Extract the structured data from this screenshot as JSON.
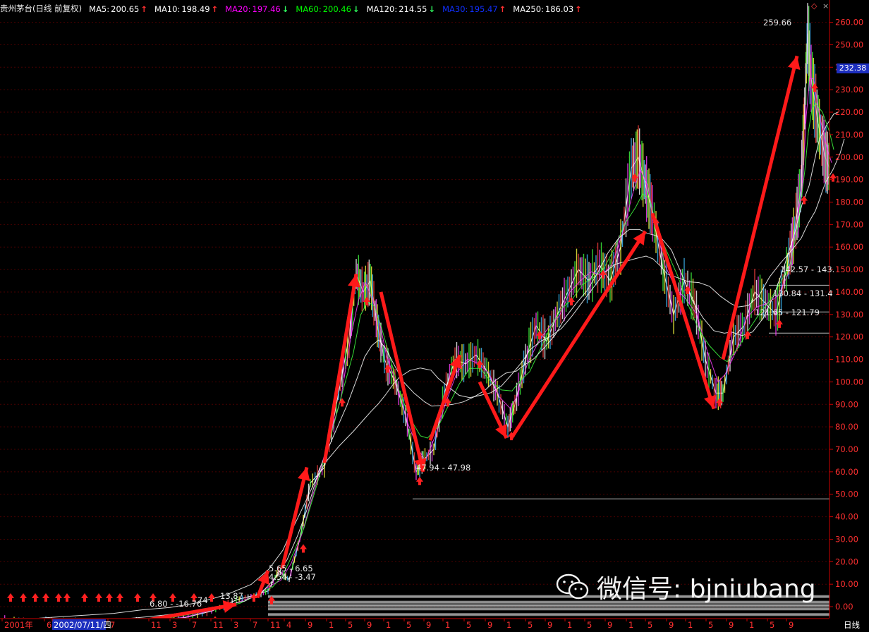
{
  "title": "贵州茅台(日线 前复权)",
  "period_label": "日线",
  "current_price_badge": "232.38",
  "watermark_text": "微信号: bjniubang",
  "icons": {
    "top_right": [
      "diamond-icon",
      "close-icon"
    ],
    "watermark": "wechat-logo-icon"
  },
  "colors": {
    "background": "#000000",
    "up_arrow": "#ff2020",
    "down_arrow": "#20ff40",
    "trend_arrow": "#ff1a1a",
    "grid": "#5a0000",
    "axis": "#cc0000",
    "price_badge": "#1d2fbf"
  },
  "moving_averages": [
    {
      "name": "MA5",
      "value": "200.65",
      "direction": "up",
      "color": "#ffffff"
    },
    {
      "name": "MA10",
      "value": "198.49",
      "direction": "up",
      "color": "#ffffff"
    },
    {
      "name": "MA20",
      "value": "197.46",
      "direction": "down",
      "color": "#ff00ff"
    },
    {
      "name": "MA60",
      "value": "200.46",
      "direction": "down",
      "color": "#00ff00"
    },
    {
      "name": "MA120",
      "value": "214.55",
      "direction": "down",
      "color": "#ffffff"
    },
    {
      "name": "MA30",
      "value": "195.47",
      "direction": "up",
      "color": "#1030ff"
    },
    {
      "name": "MA250",
      "value": "186.03",
      "direction": "up",
      "color": "#ffffff"
    }
  ],
  "chart_data": {
    "type": "line",
    "ylim": [
      -5,
      263
    ],
    "y_ticks": [
      260.0,
      250.0,
      240.0,
      230.0,
      220.0,
      210.0,
      200.0,
      190.0,
      180.0,
      170.0,
      160.0,
      150.0,
      140.0,
      130.0,
      120.0,
      110.0,
      100.0,
      90.0,
      80.0,
      70.0,
      60.0,
      50.0,
      40.0,
      30.0,
      20.0,
      10.0,
      0.0
    ],
    "x_tick_labels": [
      "2001年",
      "6",
      "2002/07/11/四",
      "7",
      "11",
      "3",
      "7",
      "11",
      "3",
      "7",
      "11",
      "4",
      "9",
      "1",
      "5",
      "9",
      "1",
      "5",
      "9",
      "1",
      "5",
      "9",
      "1",
      "5",
      "9",
      "1",
      "5",
      "9",
      "1",
      "5",
      "9",
      "1",
      "5",
      "9",
      "1",
      "5",
      "9"
    ],
    "series": [
      {
        "x": [
          0,
          40,
          90,
          140,
          180,
          220,
          260,
          300,
          335,
          360,
          380,
          395,
          410,
          425,
          440,
          460,
          480,
          495,
          505,
          515,
          525,
          535,
          545,
          560,
          575,
          590,
          600,
          615,
          630,
          645,
          660,
          675,
          690,
          705,
          720,
          730,
          745,
          760,
          775,
          790,
          805,
          820,
          835,
          850,
          865,
          880,
          895,
          905,
          915,
          925,
          940,
          955,
          970,
          985,
          1000,
          1015,
          1025,
          1040,
          1055,
          1070,
          1085,
          1100,
          1115,
          1125,
          1135,
          1140,
          1145,
          1150,
          1160,
          1170,
          1176
        ],
        "values": [
          -6,
          -6.5,
          -7,
          -7.5,
          -7.2,
          -6.8,
          -5,
          -2,
          3,
          5,
          7,
          16,
          12,
          30,
          55,
          62,
          95,
          120,
          148,
          140,
          145,
          125,
          110,
          100,
          85,
          60,
          65,
          70,
          95,
          110,
          108,
          112,
          105,
          95,
          80,
          90,
          110,
          125,
          118,
          130,
          140,
          150,
          145,
          152,
          145,
          160,
          195,
          200,
          188,
          175,
          150,
          130,
          145,
          135,
          110,
          95,
          95,
          120,
          125,
          140,
          135,
          130,
          150,
          165,
          185,
          215,
          255,
          235,
          215,
          200,
          195
        ]
      }
    ],
    "annotations": [
      "259.66",
      "47.94 - 47.98",
      "142.57 - 143.",
      "130.84 - 131.4",
      "121.65 - 121.79",
      "4.54 - -3.47",
      "6.80 - -16.76",
      "13.87",
      "5.65 - 6.65",
      "74"
    ],
    "horizontal_levels": [
      47.96,
      143.0,
      131.1,
      121.7,
      4.5,
      2.0,
      0.5,
      -1.0,
      -3.5,
      -10.5,
      -16.8
    ],
    "grid": true,
    "legend": "top-left"
  }
}
